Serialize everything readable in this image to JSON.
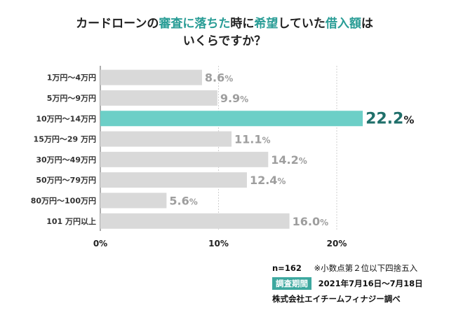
{
  "title": {
    "line1_parts": [
      "カードローンの",
      "審査に落ちた",
      "時に",
      "希望",
      "していた",
      "借入額",
      "は"
    ],
    "line1_highlight": [
      false,
      true,
      false,
      true,
      false,
      true,
      false
    ],
    "line2": "いくらですか？"
  },
  "colors": {
    "bar": "#d9d9d9",
    "highlight_bar": "#6ccfc7",
    "label": "#9e9e9e",
    "highlight_label": "#1f6f6a",
    "accent": "#3da89f"
  },
  "chart_data": {
    "type": "bar",
    "orientation": "horizontal",
    "categories": [
      "1万円～4万円",
      "5万円～9万円",
      "10万円～14万円",
      "15万円～29 万円",
      "30万円～49万円",
      "50万円～79万円",
      "80万円～100万円",
      "101 万円以上"
    ],
    "values": [
      8.6,
      9.9,
      22.2,
      11.1,
      14.2,
      12.4,
      5.6,
      16.0
    ],
    "value_labels": [
      "8.6",
      "9.9",
      "22.2",
      "11.1",
      "14.2",
      "12.4",
      "5.6",
      "16.0"
    ],
    "unit": "%",
    "highlight_index": 2,
    "xlim": [
      0,
      20
    ],
    "xticks": [
      "0%",
      "10%",
      "20%"
    ],
    "grid": true
  },
  "notes": {
    "sample": "n=162",
    "rounding": "※小数点第２位以下四捨五入",
    "period_label": "調査期間",
    "period": "2021年7月16日～7月18日",
    "company": "株式会社エイチームフィナジー調べ"
  }
}
